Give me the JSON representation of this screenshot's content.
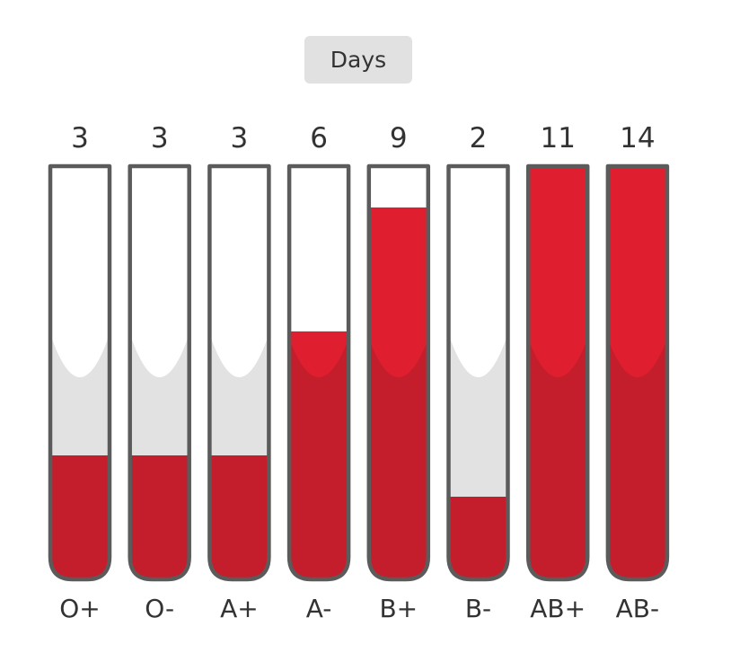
{
  "toggle": {
    "label": "Days"
  },
  "colors": {
    "blood_light": "#df1f30",
    "blood_dark": "#c41e2d",
    "tube_outline": "#5b5b5b",
    "tube_shade": "#e2e2e2",
    "tube_empty": "#ffffff"
  },
  "chart_data": {
    "type": "bar",
    "categories": [
      "O+",
      "O-",
      "A+",
      "A-",
      "B+",
      "B-",
      "AB+",
      "AB-"
    ],
    "values": [
      3,
      3,
      3,
      6,
      9,
      2,
      11,
      14
    ],
    "max_days": 10,
    "title": "",
    "xlabel": "",
    "ylabel": ""
  }
}
